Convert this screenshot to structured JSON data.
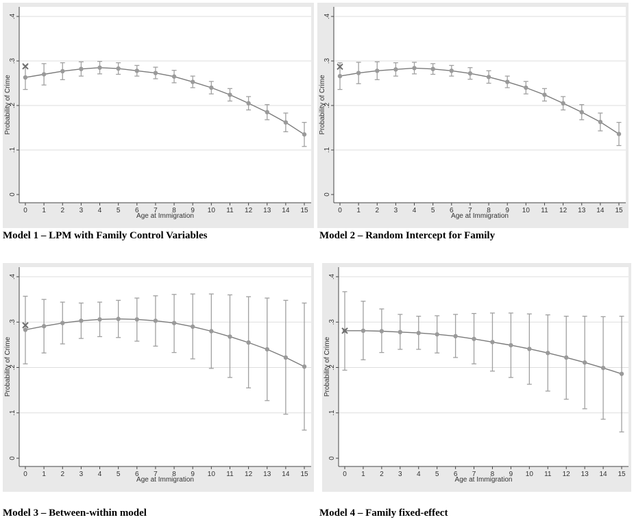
{
  "colors": {
    "panel_bg": "#e9e9e9",
    "plot_bg": "#ffffff",
    "grid": "#dddddd",
    "curve": "#7a7a7a",
    "marker": "#9a9a9a",
    "error_bar": "#a0a0a0",
    "x_marker": "#6e6e6e",
    "axis": "#444444"
  },
  "chart_data": [
    {
      "type": "line",
      "caption": "Model 1 – LPM with Family Control Variables",
      "xlabel": "Age at Immigration",
      "ylabel": "Probability of Crime",
      "x": [
        0,
        1,
        2,
        3,
        4,
        5,
        6,
        7,
        8,
        9,
        10,
        11,
        12,
        13,
        14,
        15
      ],
      "y": [
        0.263,
        0.27,
        0.277,
        0.282,
        0.285,
        0.283,
        0.278,
        0.273,
        0.265,
        0.253,
        0.24,
        0.224,
        0.205,
        0.185,
        0.162,
        0.135
      ],
      "ci_low": [
        0.236,
        0.246,
        0.258,
        0.266,
        0.271,
        0.27,
        0.266,
        0.26,
        0.251,
        0.24,
        0.226,
        0.21,
        0.19,
        0.168,
        0.141,
        0.108
      ],
      "ci_high": [
        0.29,
        0.294,
        0.296,
        0.298,
        0.299,
        0.296,
        0.29,
        0.286,
        0.279,
        0.266,
        0.254,
        0.238,
        0.22,
        0.202,
        0.183,
        0.162
      ],
      "x_marker": {
        "x": 0,
        "y": 0.288
      },
      "xticks": [
        "0",
        "1",
        "2",
        "3",
        "4",
        "5",
        "6",
        "7",
        "8",
        "9",
        "10",
        "11",
        "12",
        "13",
        "14",
        "15"
      ],
      "yticks": [
        "0",
        ".1",
        ".2",
        ".3",
        ".4"
      ],
      "xlim": [
        0,
        15
      ],
      "ylim": [
        0,
        0.4
      ],
      "grid": true
    },
    {
      "type": "line",
      "caption": "Model 2 – Random Intercept for Family",
      "xlabel": "Age at Immigration",
      "ylabel": "Probability of Crime",
      "x": [
        0,
        1,
        2,
        3,
        4,
        5,
        6,
        7,
        8,
        9,
        10,
        11,
        12,
        13,
        14,
        15
      ],
      "y": [
        0.266,
        0.273,
        0.278,
        0.281,
        0.284,
        0.282,
        0.278,
        0.272,
        0.264,
        0.253,
        0.24,
        0.224,
        0.205,
        0.185,
        0.163,
        0.136
      ],
      "ci_low": [
        0.236,
        0.249,
        0.258,
        0.266,
        0.271,
        0.27,
        0.266,
        0.259,
        0.25,
        0.24,
        0.226,
        0.21,
        0.19,
        0.168,
        0.143,
        0.11
      ],
      "ci_high": [
        0.296,
        0.297,
        0.298,
        0.296,
        0.297,
        0.294,
        0.29,
        0.285,
        0.278,
        0.266,
        0.254,
        0.238,
        0.22,
        0.202,
        0.183,
        0.162
      ],
      "x_marker": {
        "x": 0,
        "y": 0.287
      },
      "xticks": [
        "0",
        "1",
        "2",
        "3",
        "4",
        "5",
        "6",
        "7",
        "8",
        "9",
        "10",
        "11",
        "12",
        "13",
        "14",
        "15"
      ],
      "yticks": [
        "0",
        ".1",
        ".2",
        ".3",
        ".4"
      ],
      "xlim": [
        0,
        15
      ],
      "ylim": [
        0,
        0.4
      ],
      "grid": true
    },
    {
      "type": "line",
      "caption": "Model 3 – Between-within  model",
      "xlabel": "Age at Immigration",
      "ylabel": "Probability of Crime",
      "x": [
        0,
        1,
        2,
        3,
        4,
        5,
        6,
        7,
        8,
        9,
        10,
        11,
        12,
        13,
        14,
        15
      ],
      "y": [
        0.283,
        0.291,
        0.298,
        0.303,
        0.306,
        0.307,
        0.306,
        0.303,
        0.298,
        0.29,
        0.28,
        0.268,
        0.255,
        0.24,
        0.222,
        0.202
      ],
      "ci_low": [
        0.208,
        0.232,
        0.252,
        0.264,
        0.268,
        0.266,
        0.258,
        0.247,
        0.233,
        0.219,
        0.198,
        0.178,
        0.155,
        0.127,
        0.097,
        0.062
      ],
      "ci_high": [
        0.357,
        0.35,
        0.344,
        0.342,
        0.344,
        0.348,
        0.353,
        0.358,
        0.361,
        0.362,
        0.362,
        0.36,
        0.356,
        0.353,
        0.348,
        0.342
      ],
      "x_marker": {
        "x": 0,
        "y": 0.293
      },
      "xticks": [
        "0",
        "1",
        "2",
        "3",
        "4",
        "5",
        "6",
        "7",
        "8",
        "9",
        "10",
        "11",
        "12",
        "13",
        "14",
        "15"
      ],
      "yticks": [
        "0",
        ".1",
        ".2",
        ".3",
        ".4"
      ],
      "xlim": [
        0,
        15
      ],
      "ylim": [
        0,
        0.4
      ],
      "grid": true
    },
    {
      "type": "line",
      "caption": "Model 4 – Family fixed-effect",
      "xlabel": "Age at Immigration",
      "ylabel": "Probability of Crime",
      "x": [
        0,
        1,
        2,
        3,
        4,
        5,
        6,
        7,
        8,
        9,
        10,
        11,
        12,
        13,
        14,
        15
      ],
      "y": [
        0.281,
        0.281,
        0.28,
        0.278,
        0.276,
        0.273,
        0.269,
        0.263,
        0.256,
        0.249,
        0.241,
        0.232,
        0.222,
        0.211,
        0.199,
        0.186
      ],
      "ci_low": [
        0.194,
        0.217,
        0.233,
        0.24,
        0.24,
        0.232,
        0.222,
        0.208,
        0.192,
        0.178,
        0.163,
        0.148,
        0.13,
        0.109,
        0.086,
        0.058
      ],
      "ci_high": [
        0.367,
        0.346,
        0.329,
        0.317,
        0.313,
        0.314,
        0.317,
        0.319,
        0.32,
        0.32,
        0.318,
        0.316,
        0.313,
        0.313,
        0.312,
        0.313
      ],
      "x_marker": {
        "x": 0,
        "y": 0.281
      },
      "xticks": [
        "0",
        "1",
        "2",
        "3",
        "4",
        "5",
        "6",
        "7",
        "8",
        "9",
        "10",
        "11",
        "12",
        "13",
        "14",
        "15"
      ],
      "yticks": [
        "0",
        ".1",
        ".2",
        ".3",
        ".4"
      ],
      "xlim": [
        0,
        15
      ],
      "ylim": [
        0,
        0.4
      ],
      "grid": true
    }
  ]
}
